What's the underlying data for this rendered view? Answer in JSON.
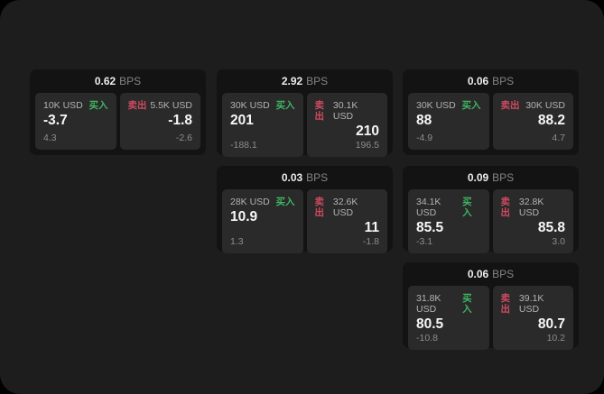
{
  "colors": {
    "surface": "#1d1d1d",
    "card": "#131313",
    "tile": "#2a2a2a",
    "buy_green": "#3fb463",
    "sell_red": "#cf4a60"
  },
  "bps_unit": "BPS",
  "cards": [
    {
      "bps_value": "0.62",
      "buy": {
        "tag": "买入",
        "amount": "10K USD",
        "value": "-3.7",
        "sub": "4.3"
      },
      "sell": {
        "tag": "卖出",
        "amount": "5.5K USD",
        "value": "-1.8",
        "sub": "-2.6"
      }
    },
    {
      "bps_value": "2.92",
      "buy": {
        "tag": "买入",
        "amount": "30K USD",
        "value": "201",
        "sub": "-188.1"
      },
      "sell": {
        "tag": "卖出",
        "amount": "30.1K USD",
        "value": "210",
        "sub": "196.5"
      }
    },
    {
      "bps_value": "0.06",
      "buy": {
        "tag": "买入",
        "amount": "30K USD",
        "value": "88",
        "sub": "-4.9"
      },
      "sell": {
        "tag": "卖出",
        "amount": "30K USD",
        "value": "88.2",
        "sub": "4.7"
      }
    },
    {
      "bps_value": "0.03",
      "buy": {
        "tag": "买入",
        "amount": "28K USD",
        "value": "10.9",
        "sub": "1.3"
      },
      "sell": {
        "tag": "卖出",
        "amount": "32.6K USD",
        "value": "11",
        "sub": "-1.8"
      }
    },
    {
      "bps_value": "0.09",
      "buy": {
        "tag": "买入",
        "amount": "34.1K USD",
        "value": "85.5",
        "sub": "-3.1"
      },
      "sell": {
        "tag": "卖出",
        "amount": "32.8K USD",
        "value": "85.8",
        "sub": "3.0"
      }
    },
    {
      "bps_value": "0.06",
      "buy": {
        "tag": "买入",
        "amount": "31.8K USD",
        "value": "80.5",
        "sub": "-10.8"
      },
      "sell": {
        "tag": "卖出",
        "amount": "39.1K USD",
        "value": "80.7",
        "sub": "10.2"
      }
    }
  ]
}
